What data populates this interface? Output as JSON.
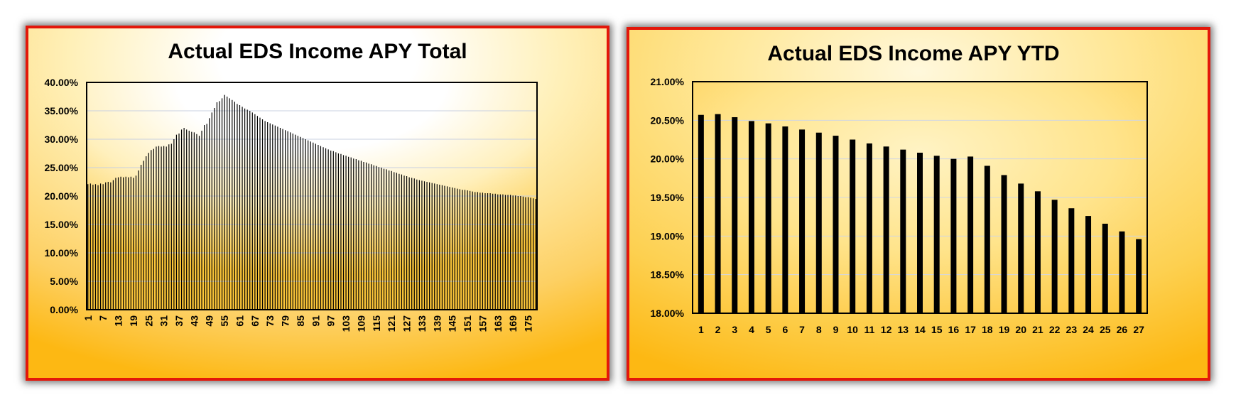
{
  "chart_data": [
    {
      "type": "bar",
      "title": "Actual EDS Income APY Total",
      "xlabel": "",
      "ylabel": "",
      "ylim": [
        0,
        0.4
      ],
      "y_ticks": [
        "0.00%",
        "5.00%",
        "10.00%",
        "15.00%",
        "20.00%",
        "25.00%",
        "30.00%",
        "35.00%",
        "40.00%"
      ],
      "x_tick_labels": [
        "1",
        "7",
        "13",
        "19",
        "25",
        "31",
        "37",
        "43",
        "49",
        "55",
        "61",
        "67",
        "73",
        "79",
        "85",
        "91",
        "97",
        "103",
        "109",
        "115",
        "121",
        "127",
        "133",
        "139",
        "145",
        "151",
        "157",
        "163",
        "169",
        "175"
      ],
      "grid": true,
      "legend": "none",
      "colors": {
        "bar": "#000000",
        "border": "#e3170a",
        "gold": "#fdb813",
        "light": "#fff4c8"
      },
      "points": [
        [
          1,
          0.221
        ],
        [
          2,
          0.222
        ],
        [
          3,
          0.22
        ],
        [
          4,
          0.221
        ],
        [
          5,
          0.219
        ],
        [
          6,
          0.222
        ],
        [
          7,
          0.221
        ],
        [
          8,
          0.224
        ],
        [
          9,
          0.225
        ],
        [
          10,
          0.224
        ],
        [
          11,
          0.228
        ],
        [
          12,
          0.232
        ],
        [
          13,
          0.233
        ],
        [
          14,
          0.234
        ],
        [
          15,
          0.233
        ],
        [
          16,
          0.234
        ],
        [
          17,
          0.233
        ],
        [
          18,
          0.234
        ],
        [
          19,
          0.232
        ],
        [
          20,
          0.236
        ],
        [
          21,
          0.245
        ],
        [
          22,
          0.255
        ],
        [
          23,
          0.262
        ],
        [
          24,
          0.27
        ],
        [
          25,
          0.276
        ],
        [
          26,
          0.281
        ],
        [
          27,
          0.283
        ],
        [
          28,
          0.287
        ],
        [
          29,
          0.288
        ],
        [
          30,
          0.287
        ],
        [
          31,
          0.288
        ],
        [
          32,
          0.287
        ],
        [
          33,
          0.291
        ],
        [
          34,
          0.292
        ],
        [
          35,
          0.3
        ],
        [
          36,
          0.308
        ],
        [
          37,
          0.31
        ],
        [
          38,
          0.317
        ],
        [
          39,
          0.32
        ],
        [
          40,
          0.317
        ],
        [
          41,
          0.315
        ],
        [
          42,
          0.313
        ],
        [
          43,
          0.312
        ],
        [
          44,
          0.309
        ],
        [
          45,
          0.306
        ],
        [
          46,
          0.315
        ],
        [
          47,
          0.325
        ],
        [
          48,
          0.327
        ],
        [
          49,
          0.337
        ],
        [
          50,
          0.347
        ],
        [
          51,
          0.355
        ],
        [
          52,
          0.365
        ],
        [
          53,
          0.367
        ],
        [
          54,
          0.372
        ],
        [
          55,
          0.378
        ],
        [
          56,
          0.375
        ],
        [
          57,
          0.372
        ],
        [
          58,
          0.369
        ],
        [
          59,
          0.366
        ],
        [
          60,
          0.362
        ],
        [
          61,
          0.36
        ],
        [
          62,
          0.357
        ],
        [
          63,
          0.354
        ],
        [
          64,
          0.352
        ],
        [
          65,
          0.35
        ],
        [
          66,
          0.347
        ],
        [
          67,
          0.344
        ],
        [
          68,
          0.341
        ],
        [
          69,
          0.338
        ],
        [
          70,
          0.335
        ],
        [
          71,
          0.332
        ],
        [
          72,
          0.33
        ],
        [
          73,
          0.328
        ],
        [
          74,
          0.326
        ],
        [
          75,
          0.324
        ],
        [
          76,
          0.322
        ],
        [
          77,
          0.32
        ],
        [
          78,
          0.318
        ],
        [
          79,
          0.316
        ],
        [
          80,
          0.314
        ],
        [
          81,
          0.312
        ],
        [
          82,
          0.31
        ],
        [
          83,
          0.308
        ],
        [
          84,
          0.306
        ],
        [
          85,
          0.304
        ],
        [
          86,
          0.302
        ],
        [
          87,
          0.3
        ],
        [
          88,
          0.298
        ],
        [
          89,
          0.296
        ],
        [
          90,
          0.294
        ],
        [
          91,
          0.292
        ],
        [
          92,
          0.29
        ],
        [
          93,
          0.288
        ],
        [
          94,
          0.286
        ],
        [
          95,
          0.284
        ],
        [
          96,
          0.282
        ],
        [
          97,
          0.28
        ],
        [
          98,
          0.279
        ],
        [
          99,
          0.277
        ],
        [
          100,
          0.275
        ],
        [
          101,
          0.274
        ],
        [
          102,
          0.272
        ],
        [
          103,
          0.271
        ],
        [
          104,
          0.269
        ],
        [
          105,
          0.268
        ],
        [
          106,
          0.266
        ],
        [
          107,
          0.265
        ],
        [
          108,
          0.263
        ],
        [
          109,
          0.262
        ],
        [
          110,
          0.26
        ],
        [
          111,
          0.259
        ],
        [
          112,
          0.257
        ],
        [
          113,
          0.256
        ],
        [
          114,
          0.254
        ],
        [
          115,
          0.253
        ],
        [
          116,
          0.251
        ],
        [
          117,
          0.25
        ],
        [
          118,
          0.248
        ],
        [
          119,
          0.247
        ],
        [
          120,
          0.245
        ],
        [
          121,
          0.244
        ],
        [
          122,
          0.242
        ],
        [
          123,
          0.241
        ],
        [
          124,
          0.239
        ],
        [
          125,
          0.238
        ],
        [
          126,
          0.236
        ],
        [
          127,
          0.235
        ],
        [
          128,
          0.233
        ],
        [
          129,
          0.232
        ],
        [
          130,
          0.231
        ],
        [
          131,
          0.229
        ],
        [
          132,
          0.228
        ],
        [
          133,
          0.227
        ],
        [
          134,
          0.226
        ],
        [
          135,
          0.225
        ],
        [
          136,
          0.224
        ],
        [
          137,
          0.223
        ],
        [
          138,
          0.222
        ],
        [
          139,
          0.221
        ],
        [
          140,
          0.22
        ],
        [
          141,
          0.219
        ],
        [
          142,
          0.218
        ],
        [
          143,
          0.217
        ],
        [
          144,
          0.216
        ],
        [
          145,
          0.215
        ],
        [
          146,
          0.214
        ],
        [
          147,
          0.213
        ],
        [
          148,
          0.212
        ],
        [
          149,
          0.211
        ],
        [
          150,
          0.211
        ],
        [
          151,
          0.21
        ],
        [
          152,
          0.209
        ],
        [
          153,
          0.208
        ],
        [
          154,
          0.207
        ],
        [
          155,
          0.207
        ],
        [
          156,
          0.206
        ],
        [
          157,
          0.206
        ],
        [
          158,
          0.205
        ],
        [
          159,
          0.205
        ],
        [
          160,
          0.205
        ],
        [
          161,
          0.204
        ],
        [
          162,
          0.204
        ],
        [
          163,
          0.203
        ],
        [
          164,
          0.203
        ],
        [
          165,
          0.203
        ],
        [
          166,
          0.202
        ],
        [
          167,
          0.202
        ],
        [
          168,
          0.202
        ],
        [
          169,
          0.201
        ],
        [
          170,
          0.201
        ],
        [
          171,
          0.2
        ],
        [
          172,
          0.2
        ],
        [
          173,
          0.199
        ],
        [
          174,
          0.198
        ],
        [
          175,
          0.198
        ],
        [
          176,
          0.197
        ],
        [
          177,
          0.196
        ],
        [
          178,
          0.195
        ]
      ]
    },
    {
      "type": "bar",
      "title": "Actual EDS Income APY YTD",
      "xlabel": "",
      "ylabel": "",
      "ylim": [
        0.18,
        0.21
      ],
      "y_ticks": [
        "18.00%",
        "18.50%",
        "19.00%",
        "19.50%",
        "20.00%",
        "20.50%",
        "21.00%"
      ],
      "categories": [
        "1",
        "2",
        "3",
        "4",
        "5",
        "6",
        "7",
        "8",
        "9",
        "10",
        "11",
        "12",
        "13",
        "14",
        "15",
        "16",
        "17",
        "18",
        "19",
        "20",
        "21",
        "22",
        "23",
        "24",
        "25",
        "26",
        "27"
      ],
      "values": [
        0.2057,
        0.2058,
        0.2054,
        0.2049,
        0.2046,
        0.2042,
        0.2038,
        0.2034,
        0.203,
        0.2025,
        0.202,
        0.2016,
        0.2012,
        0.2008,
        0.2004,
        0.2,
        0.2003,
        0.1991,
        0.1979,
        0.1968,
        0.1958,
        0.1947,
        0.1936,
        0.1926,
        0.1916,
        0.1906,
        0.1896
      ],
      "grid": true,
      "legend": "none",
      "colors": {
        "bar": "#000000",
        "border": "#e3170a",
        "gold": "#fdb813",
        "light": "#fff4c8"
      }
    }
  ]
}
